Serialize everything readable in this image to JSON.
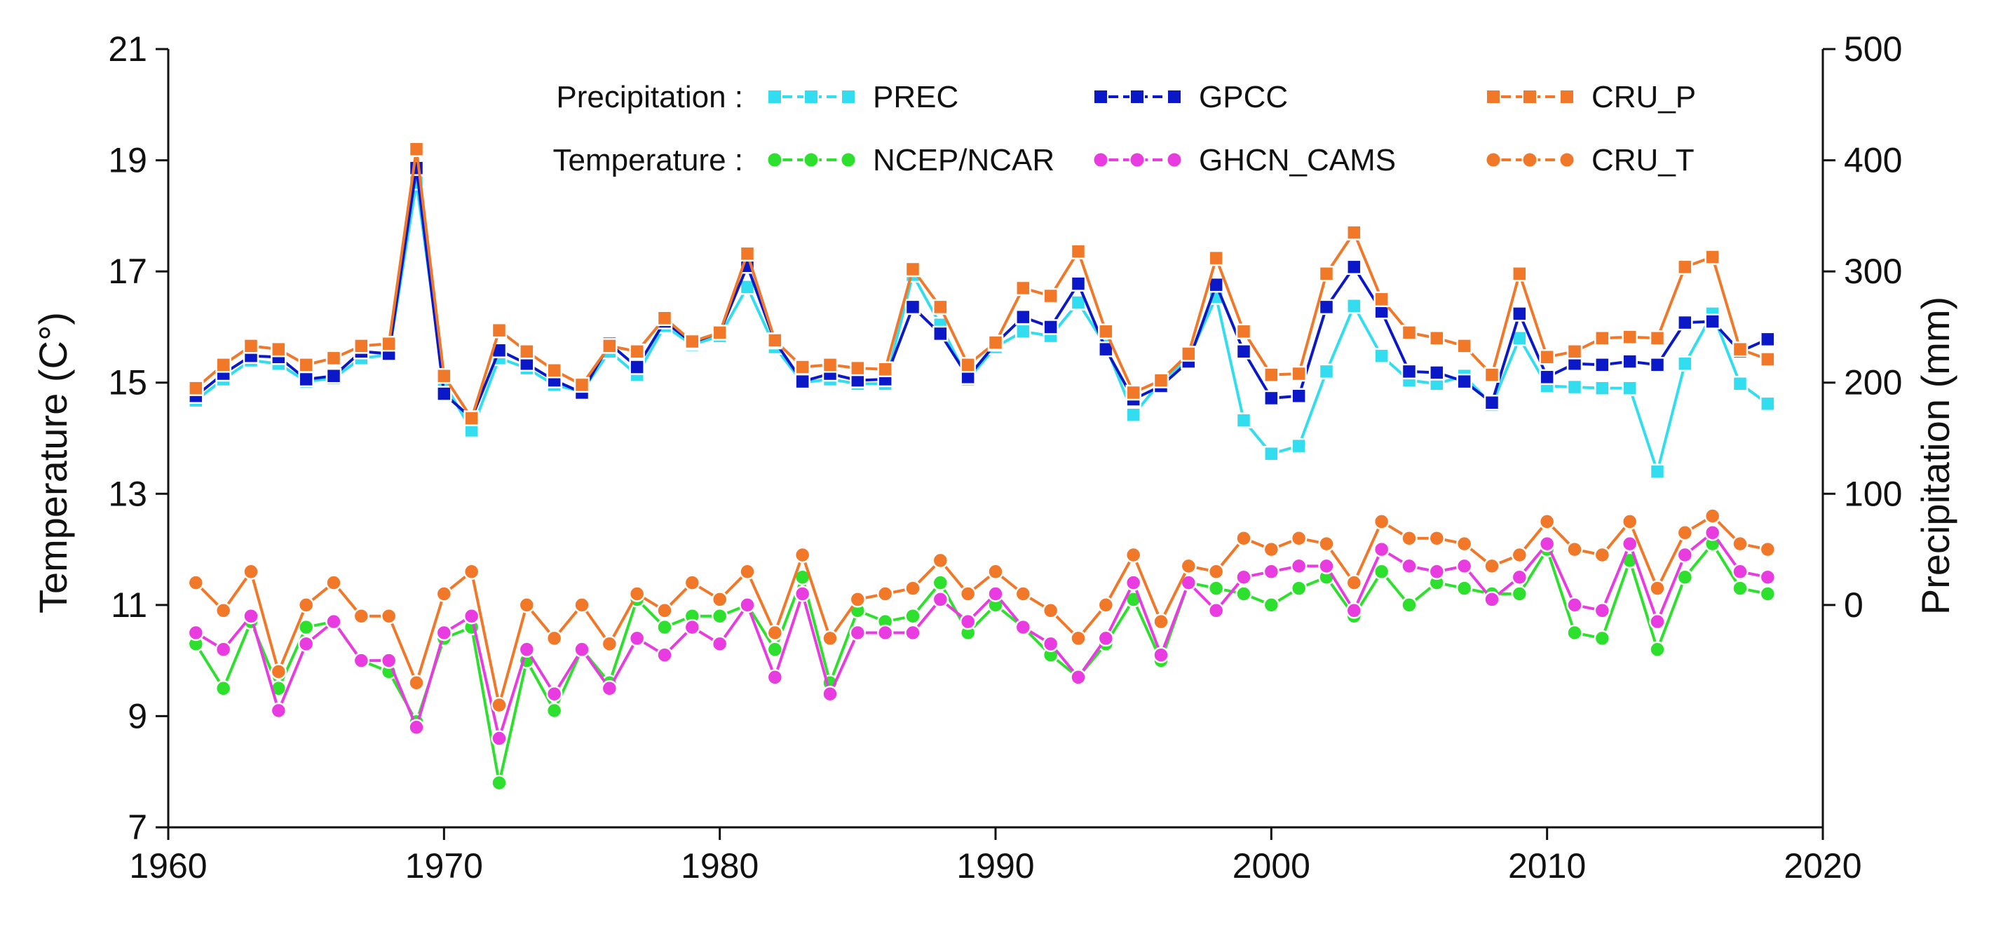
{
  "chart_data": {
    "type": "line",
    "x": [
      1961,
      1962,
      1963,
      1964,
      1965,
      1966,
      1967,
      1968,
      1969,
      1970,
      1971,
      1972,
      1973,
      1974,
      1975,
      1976,
      1977,
      1978,
      1979,
      1980,
      1981,
      1982,
      1983,
      1984,
      1985,
      1986,
      1987,
      1988,
      1989,
      1990,
      1991,
      1992,
      1993,
      1994,
      1995,
      1996,
      1997,
      1998,
      1999,
      2000,
      2001,
      2002,
      2003,
      2004,
      2005,
      2006,
      2007,
      2008,
      2009,
      2010,
      2011,
      2012,
      2013,
      2014,
      2015,
      2016,
      2017,
      2018
    ],
    "xlim": [
      1960,
      2020
    ],
    "xticks": [
      "1960",
      "1970",
      "1980",
      "1990",
      "2000",
      "2010",
      "2020"
    ],
    "left_axis": {
      "label": "Temperature (C°)",
      "range": [
        7,
        21
      ],
      "ticks": [
        "7",
        "9",
        "11",
        "13",
        "15",
        "17",
        "19",
        "21"
      ]
    },
    "right_axis": {
      "label": "Precipitation (mm)",
      "range": [
        -200,
        500
      ],
      "ticks": [
        "0",
        "100",
        "200",
        "300",
        "400",
        "500"
      ]
    },
    "legend": {
      "precip_group_label": "Precipitation :",
      "temp_group_label": "Temperature :",
      "placement": "top-center"
    },
    "series": [
      {
        "name": "PREC",
        "group": "Precipitation",
        "axis": "right",
        "marker": "square",
        "color": "#33DDF0",
        "values": [
          184,
          203,
          220,
          217,
          201,
          204,
          222,
          225,
          380,
          200,
          157,
          222,
          213,
          198,
          192,
          228,
          207,
          251,
          234,
          242,
          286,
          232,
          200,
          203,
          199,
          199,
          297,
          252,
          203,
          232,
          246,
          242,
          272,
          233,
          171,
          201,
          222,
          277,
          166,
          136,
          143,
          210,
          269,
          224,
          202,
          199,
          206,
          180,
          240,
          197,
          196,
          195,
          195,
          120,
          217,
          262,
          199,
          181
        ]
      },
      {
        "name": "GPCC",
        "group": "Precipitation",
        "axis": "right",
        "marker": "square",
        "color": "#0A18C8",
        "values": [
          188,
          208,
          224,
          223,
          203,
          206,
          228,
          226,
          393,
          190,
          168,
          229,
          217,
          202,
          191,
          235,
          214,
          255,
          236,
          245,
          305,
          237,
          201,
          208,
          202,
          203,
          268,
          244,
          205,
          235,
          259,
          250,
          289,
          230,
          185,
          197,
          219,
          288,
          228,
          186,
          188,
          268,
          304,
          264,
          210,
          209,
          201,
          182,
          262,
          205,
          217,
          216,
          219,
          216,
          254,
          255,
          228,
          239
        ]
      },
      {
        "name": "CRU_P",
        "group": "Precipitation",
        "axis": "right",
        "marker": "square",
        "color": "#F07828",
        "values": [
          195,
          216,
          233,
          230,
          216,
          222,
          233,
          235,
          410,
          206,
          168,
          247,
          228,
          211,
          198,
          233,
          228,
          258,
          237,
          245,
          316,
          238,
          214,
          216,
          213,
          212,
          302,
          268,
          216,
          236,
          285,
          278,
          318,
          246,
          191,
          202,
          226,
          312,
          246,
          207,
          208,
          298,
          335,
          275,
          245,
          240,
          233,
          207,
          298,
          223,
          228,
          240,
          241,
          240,
          304,
          313,
          230,
          221
        ]
      },
      {
        "name": "NCEP/NCAR",
        "group": "Temperature",
        "axis": "left",
        "marker": "circle",
        "color": "#2EE02E",
        "values": [
          10.3,
          9.5,
          10.7,
          9.5,
          10.6,
          10.7,
          10.0,
          9.8,
          8.9,
          10.4,
          10.6,
          7.8,
          10.0,
          9.1,
          10.2,
          9.6,
          11.1,
          10.6,
          10.8,
          10.8,
          11.0,
          10.2,
          11.5,
          9.6,
          10.9,
          10.7,
          10.8,
          11.4,
          10.5,
          11.0,
          10.6,
          10.1,
          9.7,
          10.3,
          11.1,
          10.0,
          11.4,
          11.3,
          11.2,
          11.0,
          11.3,
          11.5,
          10.8,
          11.6,
          11.0,
          11.4,
          11.3,
          11.2,
          11.2,
          12.0,
          10.5,
          10.4,
          11.8,
          10.2,
          11.5,
          12.1,
          11.3,
          11.2
        ]
      },
      {
        "name": "GHCN_CAMS",
        "group": "Temperature",
        "axis": "left",
        "marker": "circle",
        "color": "#E83CE0",
        "values": [
          10.5,
          10.2,
          10.8,
          9.1,
          10.3,
          10.7,
          10.0,
          10.0,
          8.8,
          10.5,
          10.8,
          8.6,
          10.2,
          9.4,
          10.2,
          9.5,
          10.4,
          10.1,
          10.6,
          10.3,
          11.0,
          9.7,
          11.2,
          9.4,
          10.5,
          10.5,
          10.5,
          11.1,
          10.7,
          11.2,
          10.6,
          10.3,
          9.7,
          10.4,
          11.4,
          10.1,
          11.4,
          10.9,
          11.5,
          11.6,
          11.7,
          11.7,
          10.9,
          12.0,
          11.7,
          11.6,
          11.7,
          11.1,
          11.5,
          12.1,
          11.0,
          10.9,
          12.1,
          10.7,
          11.9,
          12.3,
          11.6,
          11.5
        ]
      },
      {
        "name": "CRU_T",
        "group": "Temperature",
        "axis": "left",
        "marker": "circle",
        "color": "#F07828",
        "values": [
          11.4,
          10.9,
          11.6,
          9.8,
          11.0,
          11.4,
          10.8,
          10.8,
          9.6,
          11.2,
          11.6,
          9.2,
          11.0,
          10.4,
          11.0,
          10.3,
          11.2,
          10.9,
          11.4,
          11.1,
          11.6,
          10.5,
          11.9,
          10.4,
          11.1,
          11.2,
          11.3,
          11.8,
          11.2,
          11.6,
          11.2,
          10.9,
          10.4,
          11.0,
          11.9,
          10.7,
          11.7,
          11.6,
          12.2,
          12.0,
          12.2,
          12.1,
          11.4,
          12.5,
          12.2,
          12.2,
          12.1,
          11.7,
          11.9,
          12.5,
          12.0,
          11.9,
          12.5,
          11.3,
          12.3,
          12.6,
          12.1,
          12.0
        ]
      }
    ]
  }
}
